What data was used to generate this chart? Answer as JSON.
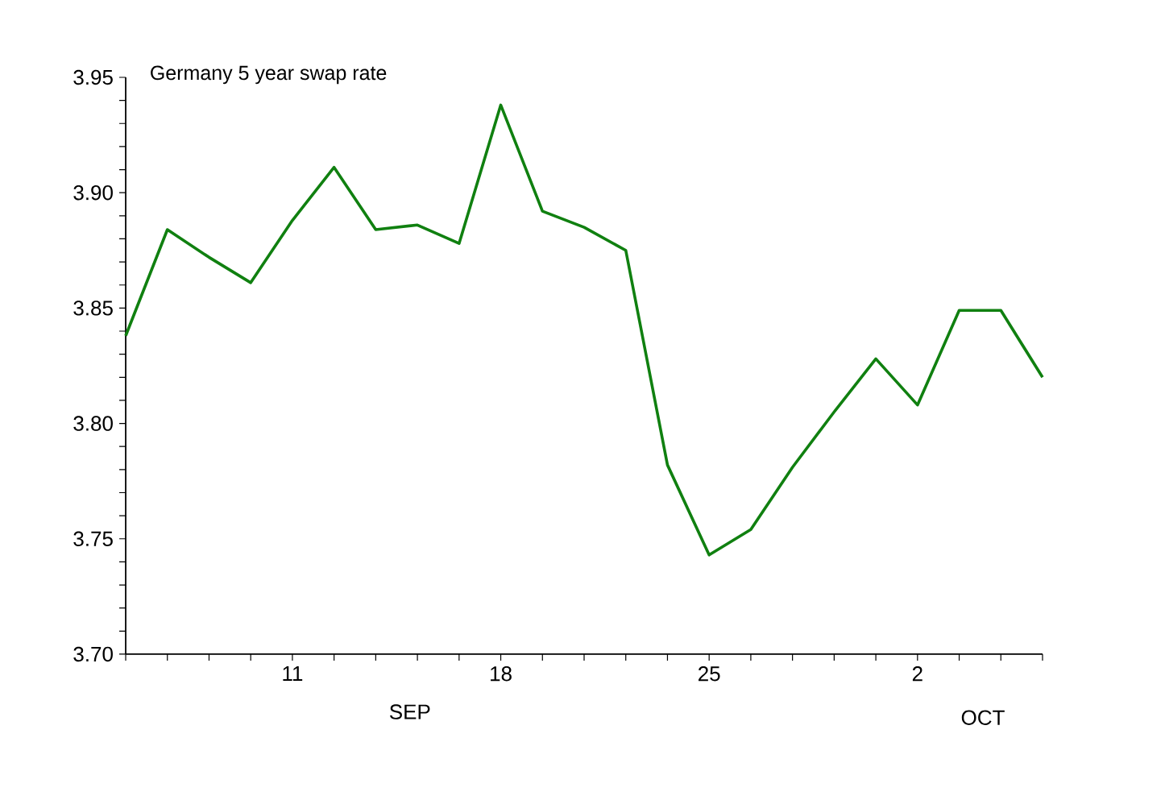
{
  "chart_data": {
    "type": "line",
    "title": "Germany 5 year swap rate",
    "categories": [
      null,
      null,
      null,
      null,
      "11",
      null,
      null,
      null,
      null,
      "18",
      null,
      null,
      null,
      null,
      "25",
      null,
      null,
      null,
      null,
      "2",
      null,
      null,
      null
    ],
    "ylim": [
      3.7,
      3.95
    ],
    "yticks": [
      {
        "value": 3.7,
        "label": "3.70"
      },
      {
        "value": 3.71,
        "label": null
      },
      {
        "value": 3.72,
        "label": null
      },
      {
        "value": 3.73,
        "label": null
      },
      {
        "value": 3.74,
        "label": null
      },
      {
        "value": 3.75,
        "label": "3.75"
      },
      {
        "value": 3.76,
        "label": null
      },
      {
        "value": 3.77,
        "label": null
      },
      {
        "value": 3.78,
        "label": null
      },
      {
        "value": 3.79,
        "label": null
      },
      {
        "value": 3.8,
        "label": "3.80"
      },
      {
        "value": 3.81,
        "label": null
      },
      {
        "value": 3.82,
        "label": null
      },
      {
        "value": 3.83,
        "label": null
      },
      {
        "value": 3.84,
        "label": null
      },
      {
        "value": 3.85,
        "label": "3.85"
      },
      {
        "value": 3.86,
        "label": null
      },
      {
        "value": 3.87,
        "label": null
      },
      {
        "value": 3.88,
        "label": null
      },
      {
        "value": 3.89,
        "label": null
      },
      {
        "value": 3.9,
        "label": "3.90"
      },
      {
        "value": 3.91,
        "label": null
      },
      {
        "value": 3.92,
        "label": null
      },
      {
        "value": 3.93,
        "label": null
      },
      {
        "value": 3.94,
        "label": null
      },
      {
        "value": 3.95,
        "label": "3.95"
      }
    ],
    "series": [
      {
        "color": "#108010",
        "values": [
          3.838,
          3.884,
          3.872,
          3.861,
          3.888,
          3.911,
          3.884,
          3.886,
          3.878,
          3.938,
          3.892,
          3.885,
          3.875,
          3.782,
          3.743,
          3.754,
          3.781,
          3.805,
          3.828,
          3.808,
          3.849,
          3.849,
          3.82
        ]
      }
    ],
    "annotations": [
      "SEP",
      "OCT"
    ],
    "grid": false,
    "marker": "none",
    "line_style": "solid"
  }
}
